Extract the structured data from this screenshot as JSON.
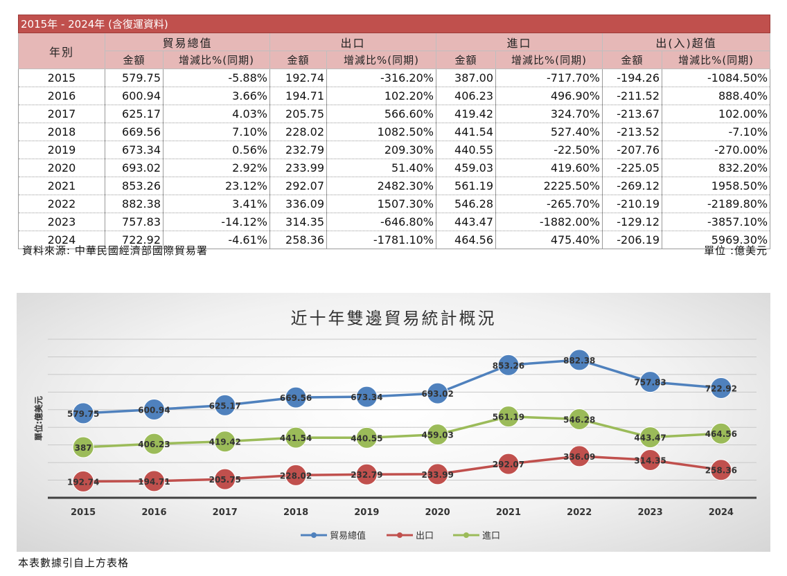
{
  "table": {
    "title": "2015年 - 2024年 (含復運資料)",
    "year_header": "年別",
    "group_headers": [
      "貿易總值",
      "出口",
      "進口",
      "出(入)超值"
    ],
    "sub_amount": "金額",
    "sub_change": "增減比%(同期)",
    "rows": [
      {
        "year": "2015",
        "total": "579.75",
        "total_chg": "-5.88%",
        "exp": "192.74",
        "exp_chg": "-316.20%",
        "imp": "387.00",
        "imp_chg": "-717.70%",
        "bal": "-194.26",
        "bal_chg": "-1084.50%"
      },
      {
        "year": "2016",
        "total": "600.94",
        "total_chg": "3.66%",
        "exp": "194.71",
        "exp_chg": "102.20%",
        "imp": "406.23",
        "imp_chg": "496.90%",
        "bal": "-211.52",
        "bal_chg": "888.40%"
      },
      {
        "year": "2017",
        "total": "625.17",
        "total_chg": "4.03%",
        "exp": "205.75",
        "exp_chg": "566.60%",
        "imp": "419.42",
        "imp_chg": "324.70%",
        "bal": "-213.67",
        "bal_chg": "102.00%"
      },
      {
        "year": "2018",
        "total": "669.56",
        "total_chg": "7.10%",
        "exp": "228.02",
        "exp_chg": "1082.50%",
        "imp": "441.54",
        "imp_chg": "527.40%",
        "bal": "-213.52",
        "bal_chg": "-7.10%"
      },
      {
        "year": "2019",
        "total": "673.34",
        "total_chg": "0.56%",
        "exp": "232.79",
        "exp_chg": "209.30%",
        "imp": "440.55",
        "imp_chg": "-22.50%",
        "bal": "-207.76",
        "bal_chg": "-270.00%"
      },
      {
        "year": "2020",
        "total": "693.02",
        "total_chg": "2.92%",
        "exp": "233.99",
        "exp_chg": "51.40%",
        "imp": "459.03",
        "imp_chg": "419.60%",
        "bal": "-225.05",
        "bal_chg": "832.20%"
      },
      {
        "year": "2021",
        "total": "853.26",
        "total_chg": "23.12%",
        "exp": "292.07",
        "exp_chg": "2482.30%",
        "imp": "561.19",
        "imp_chg": "2225.50%",
        "bal": "-269.12",
        "bal_chg": "1958.50%"
      },
      {
        "year": "2022",
        "total": "882.38",
        "total_chg": "3.41%",
        "exp": "336.09",
        "exp_chg": "1507.30%",
        "imp": "546.28",
        "imp_chg": "-265.70%",
        "bal": "-210.19",
        "bal_chg": "-2189.80%"
      },
      {
        "year": "2023",
        "total": "757.83",
        "total_chg": "-14.12%",
        "exp": "314.35",
        "exp_chg": "-646.80%",
        "imp": "443.47",
        "imp_chg": "-1882.00%",
        "bal": "-129.12",
        "bal_chg": "-3857.10%"
      },
      {
        "year": "2024",
        "total": "722.92",
        "total_chg": "-4.61%",
        "exp": "258.36",
        "exp_chg": "-1781.10%",
        "imp": "464.56",
        "imp_chg": "475.40%",
        "bal": "-206.19",
        "bal_chg": "5969.30%"
      }
    ],
    "source": "資料來源: 中華民國經濟部國際貿易署",
    "unit": "單位 :億美元"
  },
  "footnote": "本表數據引自上方表格",
  "chart_data": {
    "type": "line",
    "title": "近十年雙邊貿易統計概況",
    "ylabel": "單位:億美元",
    "xlabel": "",
    "categories": [
      "2015",
      "2016",
      "2017",
      "2018",
      "2019",
      "2020",
      "2021",
      "2022",
      "2023",
      "2024"
    ],
    "ylim": [
      100,
      1000
    ],
    "grid": true,
    "legend_position": "bottom",
    "series": [
      {
        "name": "貿易總值",
        "color": "#4f81bd",
        "values": [
          579.75,
          600.94,
          625.17,
          669.56,
          673.34,
          693.02,
          853.26,
          882.38,
          757.83,
          722.92
        ]
      },
      {
        "name": "出口",
        "color": "#c0504d",
        "values": [
          192.74,
          194.71,
          205.75,
          228.02,
          232.79,
          233.99,
          292.07,
          336.09,
          314.35,
          258.36
        ]
      },
      {
        "name": "進口",
        "color": "#9bbb59",
        "values": [
          387.0,
          406.23,
          419.42,
          441.54,
          440.55,
          459.03,
          561.19,
          546.28,
          443.47,
          464.56
        ]
      }
    ]
  }
}
